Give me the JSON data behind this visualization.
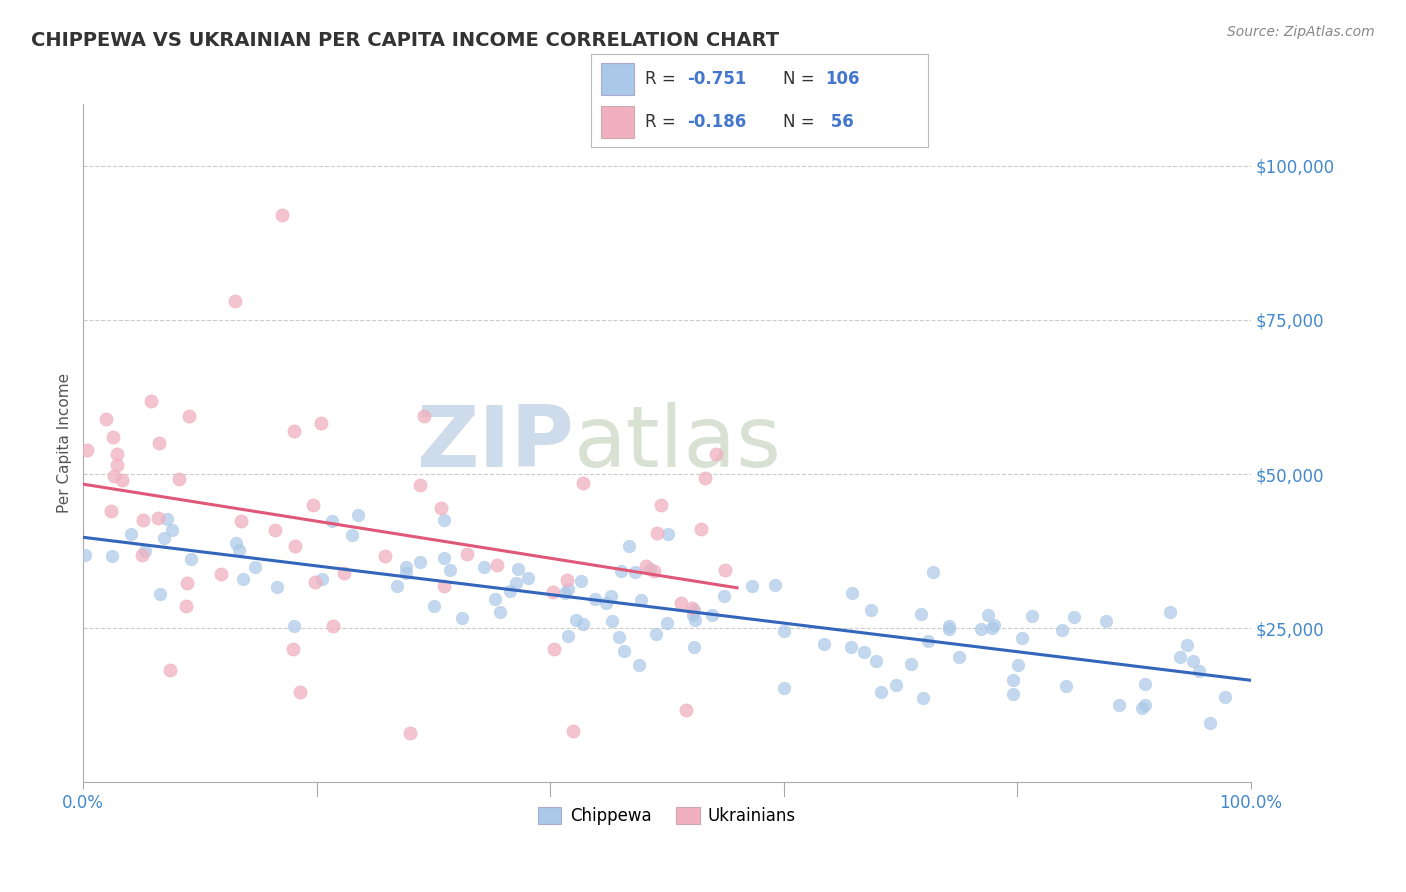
{
  "title": "CHIPPEWA VS UKRAINIAN PER CAPITA INCOME CORRELATION CHART",
  "source_text": "Source: ZipAtlas.com",
  "ylabel": "Per Capita Income",
  "watermark_zip": "ZIP",
  "watermark_atlas": "atlas",
  "xlim": [
    0.0,
    1.0
  ],
  "ylim": [
    0,
    110000
  ],
  "yticks": [
    25000,
    50000,
    75000,
    100000
  ],
  "ytick_labels": [
    "$25,000",
    "$50,000",
    "$75,000",
    "$100,000"
  ],
  "title_color": "#333333",
  "title_fontsize": 14,
  "axis_label_color": "#555555",
  "blue_color": "#aac8e8",
  "pink_color": "#f0b0c0",
  "trend_blue": "#3366bb",
  "trend_pink": "#e05878",
  "label1": "Chippewa",
  "label2": "Ukrainians",
  "blue_R": -0.751,
  "blue_N": 106,
  "pink_R": -0.186,
  "pink_N": 56,
  "tick_color": "#4488cc",
  "grid_color": "#cccccc",
  "background_color": "#ffffff",
  "legend_text_color": "#333333",
  "legend_value_color": "#4477cc",
  "source_color": "#888888",
  "watermark_zip_color": "#c5d5e8",
  "watermark_atlas_color": "#c8d8c8"
}
